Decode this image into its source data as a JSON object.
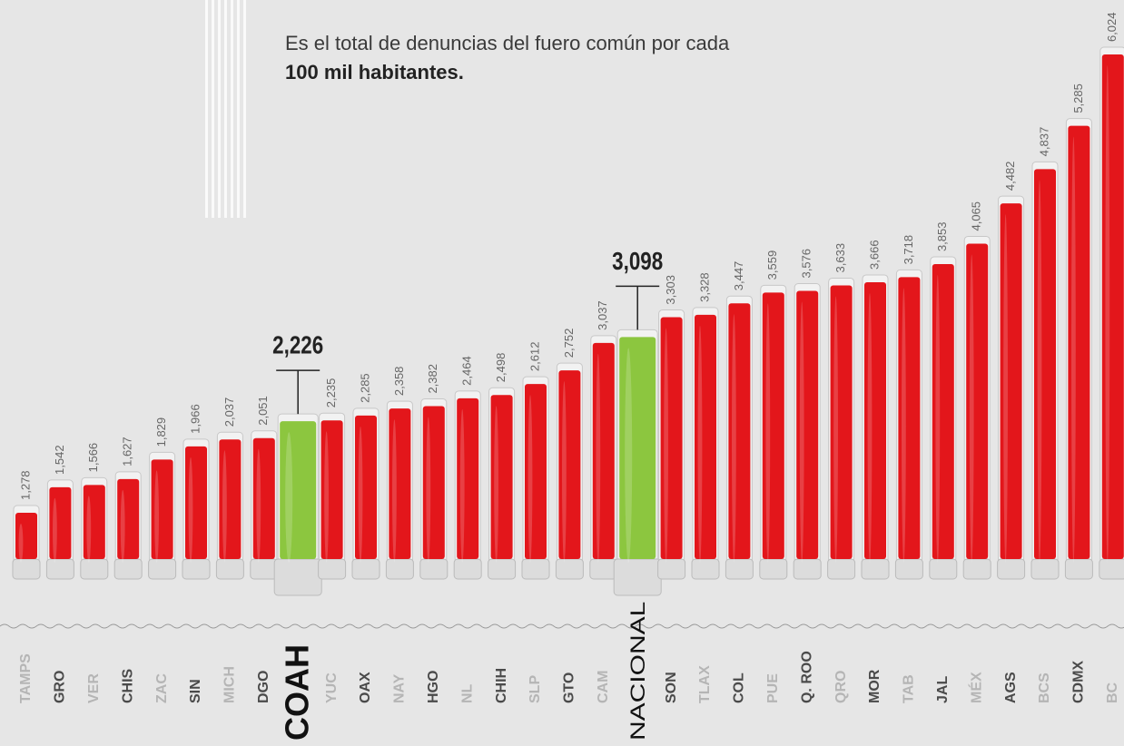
{
  "chart_data": {
    "type": "bar",
    "subtitle": "Es el total de denuncias del fuero común por cada",
    "subtitle_bold": "100 mil habitantes.",
    "categories": [
      "TAMPS",
      "GRO",
      "VER",
      "CHIS",
      "ZAC",
      "SIN",
      "MICH",
      "DGO",
      "COAH",
      "YUC",
      "OAX",
      "NAY",
      "HGO",
      "NL",
      "CHIH",
      "SLP",
      "GTO",
      "CAM",
      "NACIONAL",
      "SON",
      "TLAX",
      "COL",
      "PUE",
      "Q. ROO",
      "QRO",
      "MOR",
      "TAB",
      "JAL",
      "MÉX",
      "AGS",
      "BCS",
      "CDMX",
      "BC"
    ],
    "values": [
      1278,
      1542,
      1566,
      1627,
      1829,
      1966,
      2037,
      2051,
      2226,
      2235,
      2285,
      2358,
      2382,
      2464,
      2498,
      2612,
      2752,
      3037,
      3098,
      3303,
      3328,
      3447,
      3559,
      3576,
      3633,
      3666,
      3718,
      3853,
      4065,
      4482,
      4837,
      5285,
      6024
    ],
    "value_labels": [
      "1,278",
      "1,542",
      "1,566",
      "1,627",
      "1,829",
      "1,966",
      "2,037",
      "2,051",
      "2,226",
      "2,235",
      "2,285",
      "2,358",
      "2,382",
      "2,464",
      "2,498",
      "2,612",
      "2,752",
      "3,037",
      "3,098",
      "3,303",
      "3,328",
      "3,447",
      "3,559",
      "3,576",
      "3,633",
      "3,666",
      "3,718",
      "3,853",
      "4,065",
      "4,482",
      "4,837",
      "5,285",
      "6,024"
    ],
    "color": "#e3161b",
    "highlight_color": "#8cc63f",
    "colors": [
      "#e3161b",
      "#e3161b",
      "#e3161b",
      "#e3161b",
      "#e3161b",
      "#e3161b",
      "#e3161b",
      "#e3161b",
      "#8cc63f",
      "#e3161b",
      "#e3161b",
      "#e3161b",
      "#e3161b",
      "#e3161b",
      "#e3161b",
      "#e3161b",
      "#e3161b",
      "#e3161b",
      "#8cc63f",
      "#e3161b",
      "#e3161b",
      "#e3161b",
      "#e3161b",
      "#e3161b",
      "#e3161b",
      "#e3161b",
      "#e3161b",
      "#e3161b",
      "#e3161b",
      "#e3161b",
      "#e3161b",
      "#e3161b",
      "#e3161b"
    ]
  }
}
